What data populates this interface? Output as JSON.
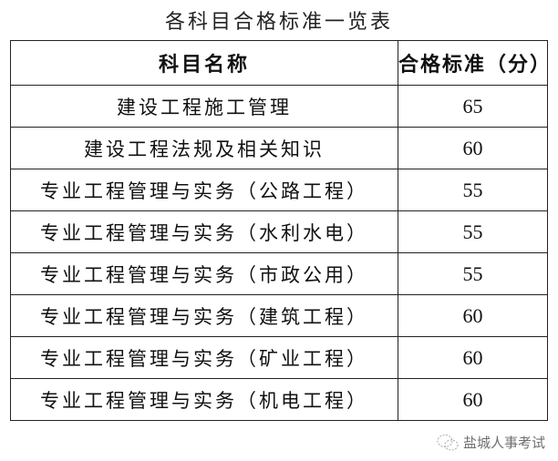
{
  "title": "各科目合格标准一览表",
  "table": {
    "headers": [
      "科目名称",
      "合格标准（分）"
    ],
    "rows": [
      {
        "subject": "建设工程施工管理",
        "score": "65"
      },
      {
        "subject": "建设工程法规及相关知识",
        "score": "60"
      },
      {
        "subject": "专业工程管理与实务（公路工程）",
        "score": "55"
      },
      {
        "subject": "专业工程管理与实务（水利水电）",
        "score": "55"
      },
      {
        "subject": "专业工程管理与实务（市政公用）",
        "score": "55"
      },
      {
        "subject": "专业工程管理与实务（建筑工程）",
        "score": "60"
      },
      {
        "subject": "专业工程管理与实务（矿业工程）",
        "score": "60"
      },
      {
        "subject": "专业工程管理与实务（机电工程）",
        "score": "60"
      }
    ]
  },
  "watermark": {
    "icon": "wechat-icon",
    "text": "盐城人事考试"
  }
}
